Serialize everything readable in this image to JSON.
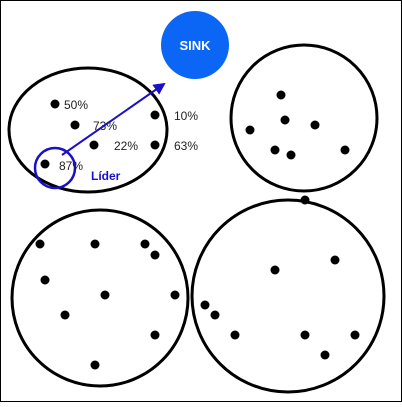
{
  "colors": {
    "sink_fill": "#0b66f5",
    "sink_text": "#ffffff",
    "leader_ring": "#1a10c8",
    "arrow": "#1a10c8",
    "leader_label": "#1a10c8",
    "cluster_stroke": "#000000",
    "node_fill": "#000000",
    "frame": "#000000"
  },
  "sink": {
    "label": "SINK"
  },
  "leader": {
    "label": "Líder"
  },
  "clusters": [
    {
      "name": "cluster-top-left",
      "nodes": [
        {
          "label": "50%"
        },
        {
          "label": "73%"
        },
        {
          "label": "22%"
        },
        {
          "label": "10%"
        },
        {
          "label": "63%"
        },
        {
          "label": "87%",
          "leader": true
        }
      ]
    },
    {
      "name": "cluster-top-right",
      "nodes": 7
    },
    {
      "name": "cluster-bottom-left",
      "nodes": 10
    },
    {
      "name": "cluster-bottom-right",
      "nodes": 9
    }
  ]
}
